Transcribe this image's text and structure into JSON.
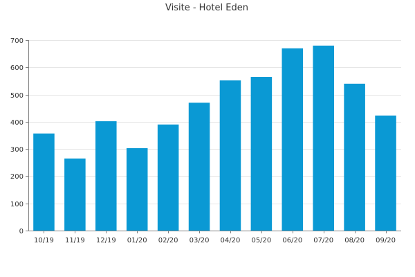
{
  "chart_data": {
    "type": "bar",
    "title": "Visite - Hotel Eden",
    "xlabel": "",
    "ylabel": "",
    "categories": [
      "10/19",
      "11/19",
      "12/19",
      "01/20",
      "02/20",
      "03/20",
      "04/20",
      "05/20",
      "06/20",
      "07/20",
      "08/20",
      "09/20"
    ],
    "values": [
      357,
      265,
      402,
      303,
      390,
      470,
      552,
      565,
      670,
      680,
      540,
      423
    ],
    "ylim": [
      0,
      700
    ],
    "yticks": [
      0,
      100,
      200,
      300,
      400,
      500,
      600,
      700
    ],
    "grid": true,
    "legend": "none",
    "bar_color": "#0a99d4"
  }
}
